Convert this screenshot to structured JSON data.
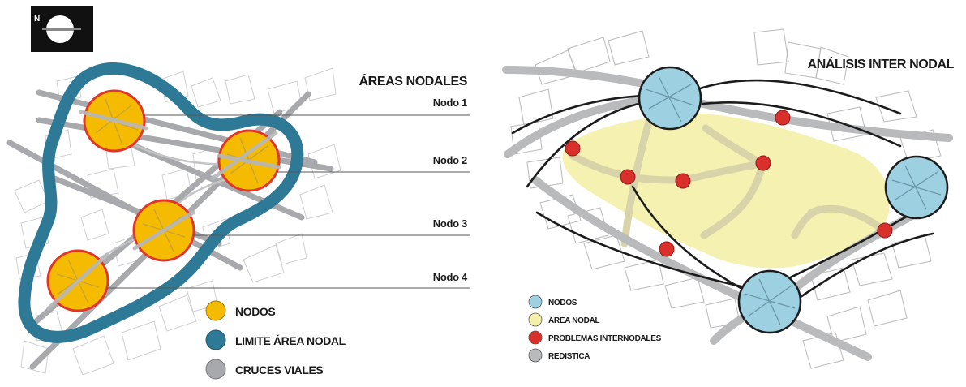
{
  "left_map": {
    "title": "ÁREAS NODALES",
    "node_labels": [
      "Nodo 1",
      "Nodo 2",
      "Nodo 3",
      "Nodo 4"
    ],
    "legend": [
      {
        "label": "NODOS",
        "color": "#f4bb00"
      },
      {
        "label": "LIMITE ÁREA NODAL",
        "color": "#2e7a96"
      },
      {
        "label": "CRUCES VIALES",
        "color": "#a7a9ac"
      }
    ]
  },
  "right_map": {
    "title": "ANÁLISIS INTER NODAL",
    "legend": [
      {
        "label": "NODOS",
        "color": "#9dd0e0"
      },
      {
        "label": "ÁREA NODAL",
        "color": "#f4efa9"
      },
      {
        "label": "PROBLEMAS INTERNODALES",
        "color": "#d9302c"
      },
      {
        "label": "REDISTICA",
        "color": "#b9babc"
      }
    ]
  },
  "north_arrow": {
    "label": "N"
  },
  "colors": {
    "node_fill": "#f4bb00",
    "node_stroke": "#e3342a",
    "boundary": "#2e7a96",
    "roads": "#a7a9ac",
    "internodal_node": "#9dd0e0",
    "problem_point": "#d9302c",
    "nodal_area": "#f4efa9"
  }
}
